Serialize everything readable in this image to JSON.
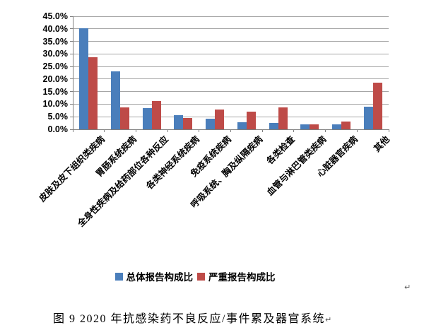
{
  "figure": {
    "caption": "图 9  2020 年抗感染药不良反应/事件累及器官系统",
    "return_mark": "↵"
  },
  "chart_data": {
    "type": "bar",
    "title": "",
    "xlabel": "",
    "ylabel": "",
    "categories": [
      "皮肤及皮下组织类疾病",
      "胃肠系统疾病",
      "全身性疾病及给药部位各种反应",
      "各类神经系统疾病",
      "免疫系统疾病",
      "呼吸系统、胸及纵隔疾病",
      "各类检查",
      "血管与淋巴管类疾病",
      "心脏器官疾病",
      "其他"
    ],
    "series": [
      {
        "name": "总体报告构成比",
        "color": "#4a7ebb",
        "values": [
          40.3,
          23.1,
          8.5,
          5.7,
          4.2,
          2.9,
          2.6,
          2.1,
          1.9,
          9.1
        ]
      },
      {
        "name": "严重报告构成比",
        "color": "#be4b48",
        "values": [
          28.8,
          8.6,
          11.2,
          4.4,
          8.0,
          7.0,
          8.6,
          2.1,
          3.1,
          18.6
        ]
      }
    ],
    "ylim": [
      0,
      45
    ],
    "ytick_step": 5,
    "ytick_labels": [
      "0.0%",
      "5.0%",
      "10.0%",
      "15.0%",
      "20.0%",
      "25.0%",
      "30.0%",
      "35.0%",
      "40.0%",
      "45.0%"
    ],
    "grid": true,
    "legend_position": "bottom"
  },
  "style": {
    "gridline_color": "#a6a6a6",
    "axis_color": "#7f7f7f",
    "text_color": "#000000",
    "background": "#ffffff"
  }
}
